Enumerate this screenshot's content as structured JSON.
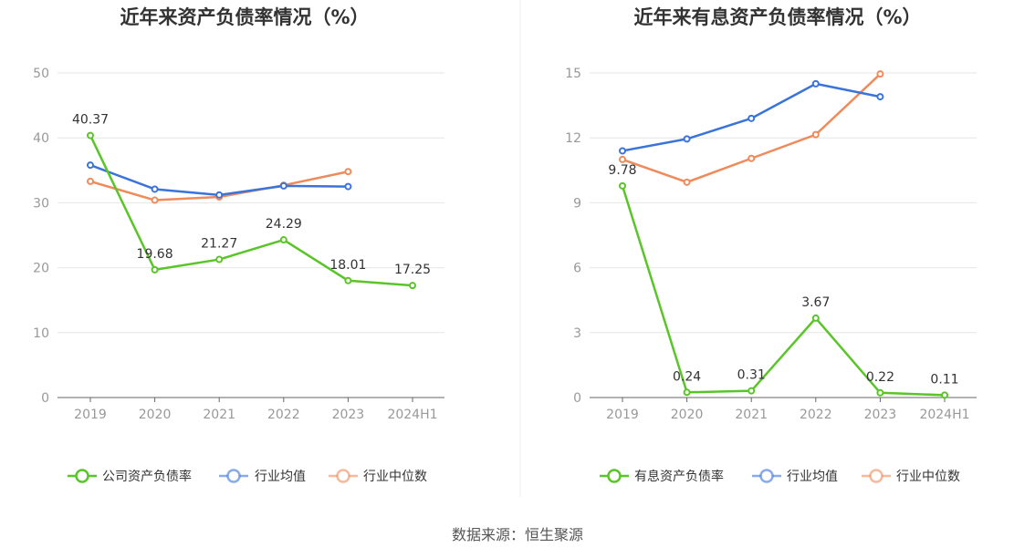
{
  "source": "数据来源：恒生聚源",
  "colors": {
    "company": "#5ac528",
    "avg": "#3a73d9",
    "median": "#ef8a5a",
    "grid": "#e6e6e6",
    "axis": "#666666"
  },
  "chart_data": [
    {
      "type": "line",
      "title": "近年来资产负债率情况（%）",
      "categories": [
        "2019",
        "2020",
        "2021",
        "2022",
        "2023",
        "2024H1"
      ],
      "ylim": [
        0,
        50
      ],
      "yticks": [
        0,
        10,
        20,
        30,
        40,
        50
      ],
      "ytick_labels": [
        "0",
        "10",
        "20",
        "30",
        "40",
        "50"
      ],
      "grid": true,
      "legend_position": "bottom",
      "series": [
        {
          "name": "公司资产负债率",
          "key": "company",
          "values": [
            40.37,
            19.68,
            21.27,
            24.29,
            18.01,
            17.25
          ],
          "labels": [
            "40.37",
            "19.68",
            "21.27",
            "24.29",
            "18.01",
            "17.25"
          ]
        },
        {
          "name": "行业均值",
          "key": "avg",
          "values": [
            35.8,
            32.1,
            31.2,
            32.6,
            32.5,
            null
          ]
        },
        {
          "name": "行业中位数",
          "key": "median",
          "values": [
            33.3,
            30.4,
            30.9,
            32.7,
            34.8,
            null
          ]
        }
      ]
    },
    {
      "type": "line",
      "title": "近年来有息资产负债率情况（%）",
      "categories": [
        "2019",
        "2020",
        "2021",
        "2022",
        "2023",
        "2024H1"
      ],
      "ylim": [
        0,
        15
      ],
      "yticks": [
        0,
        3,
        6,
        9,
        12,
        15
      ],
      "ytick_labels": [
        "0",
        "3",
        "6",
        "9",
        "12",
        "15"
      ],
      "grid": true,
      "legend_position": "bottom",
      "series": [
        {
          "name": "有息资产负债率",
          "key": "company",
          "values": [
            9.78,
            0.24,
            0.31,
            3.67,
            0.22,
            0.11
          ],
          "labels": [
            "9.78",
            "0.24",
            "0.31",
            "3.67",
            "0.22",
            "0.11"
          ]
        },
        {
          "name": "行业均值",
          "key": "avg",
          "values": [
            11.4,
            11.95,
            12.9,
            14.5,
            13.9,
            null
          ]
        },
        {
          "name": "行业中位数",
          "key": "median",
          "values": [
            11.0,
            9.95,
            11.05,
            12.15,
            14.95,
            null
          ]
        }
      ]
    }
  ]
}
